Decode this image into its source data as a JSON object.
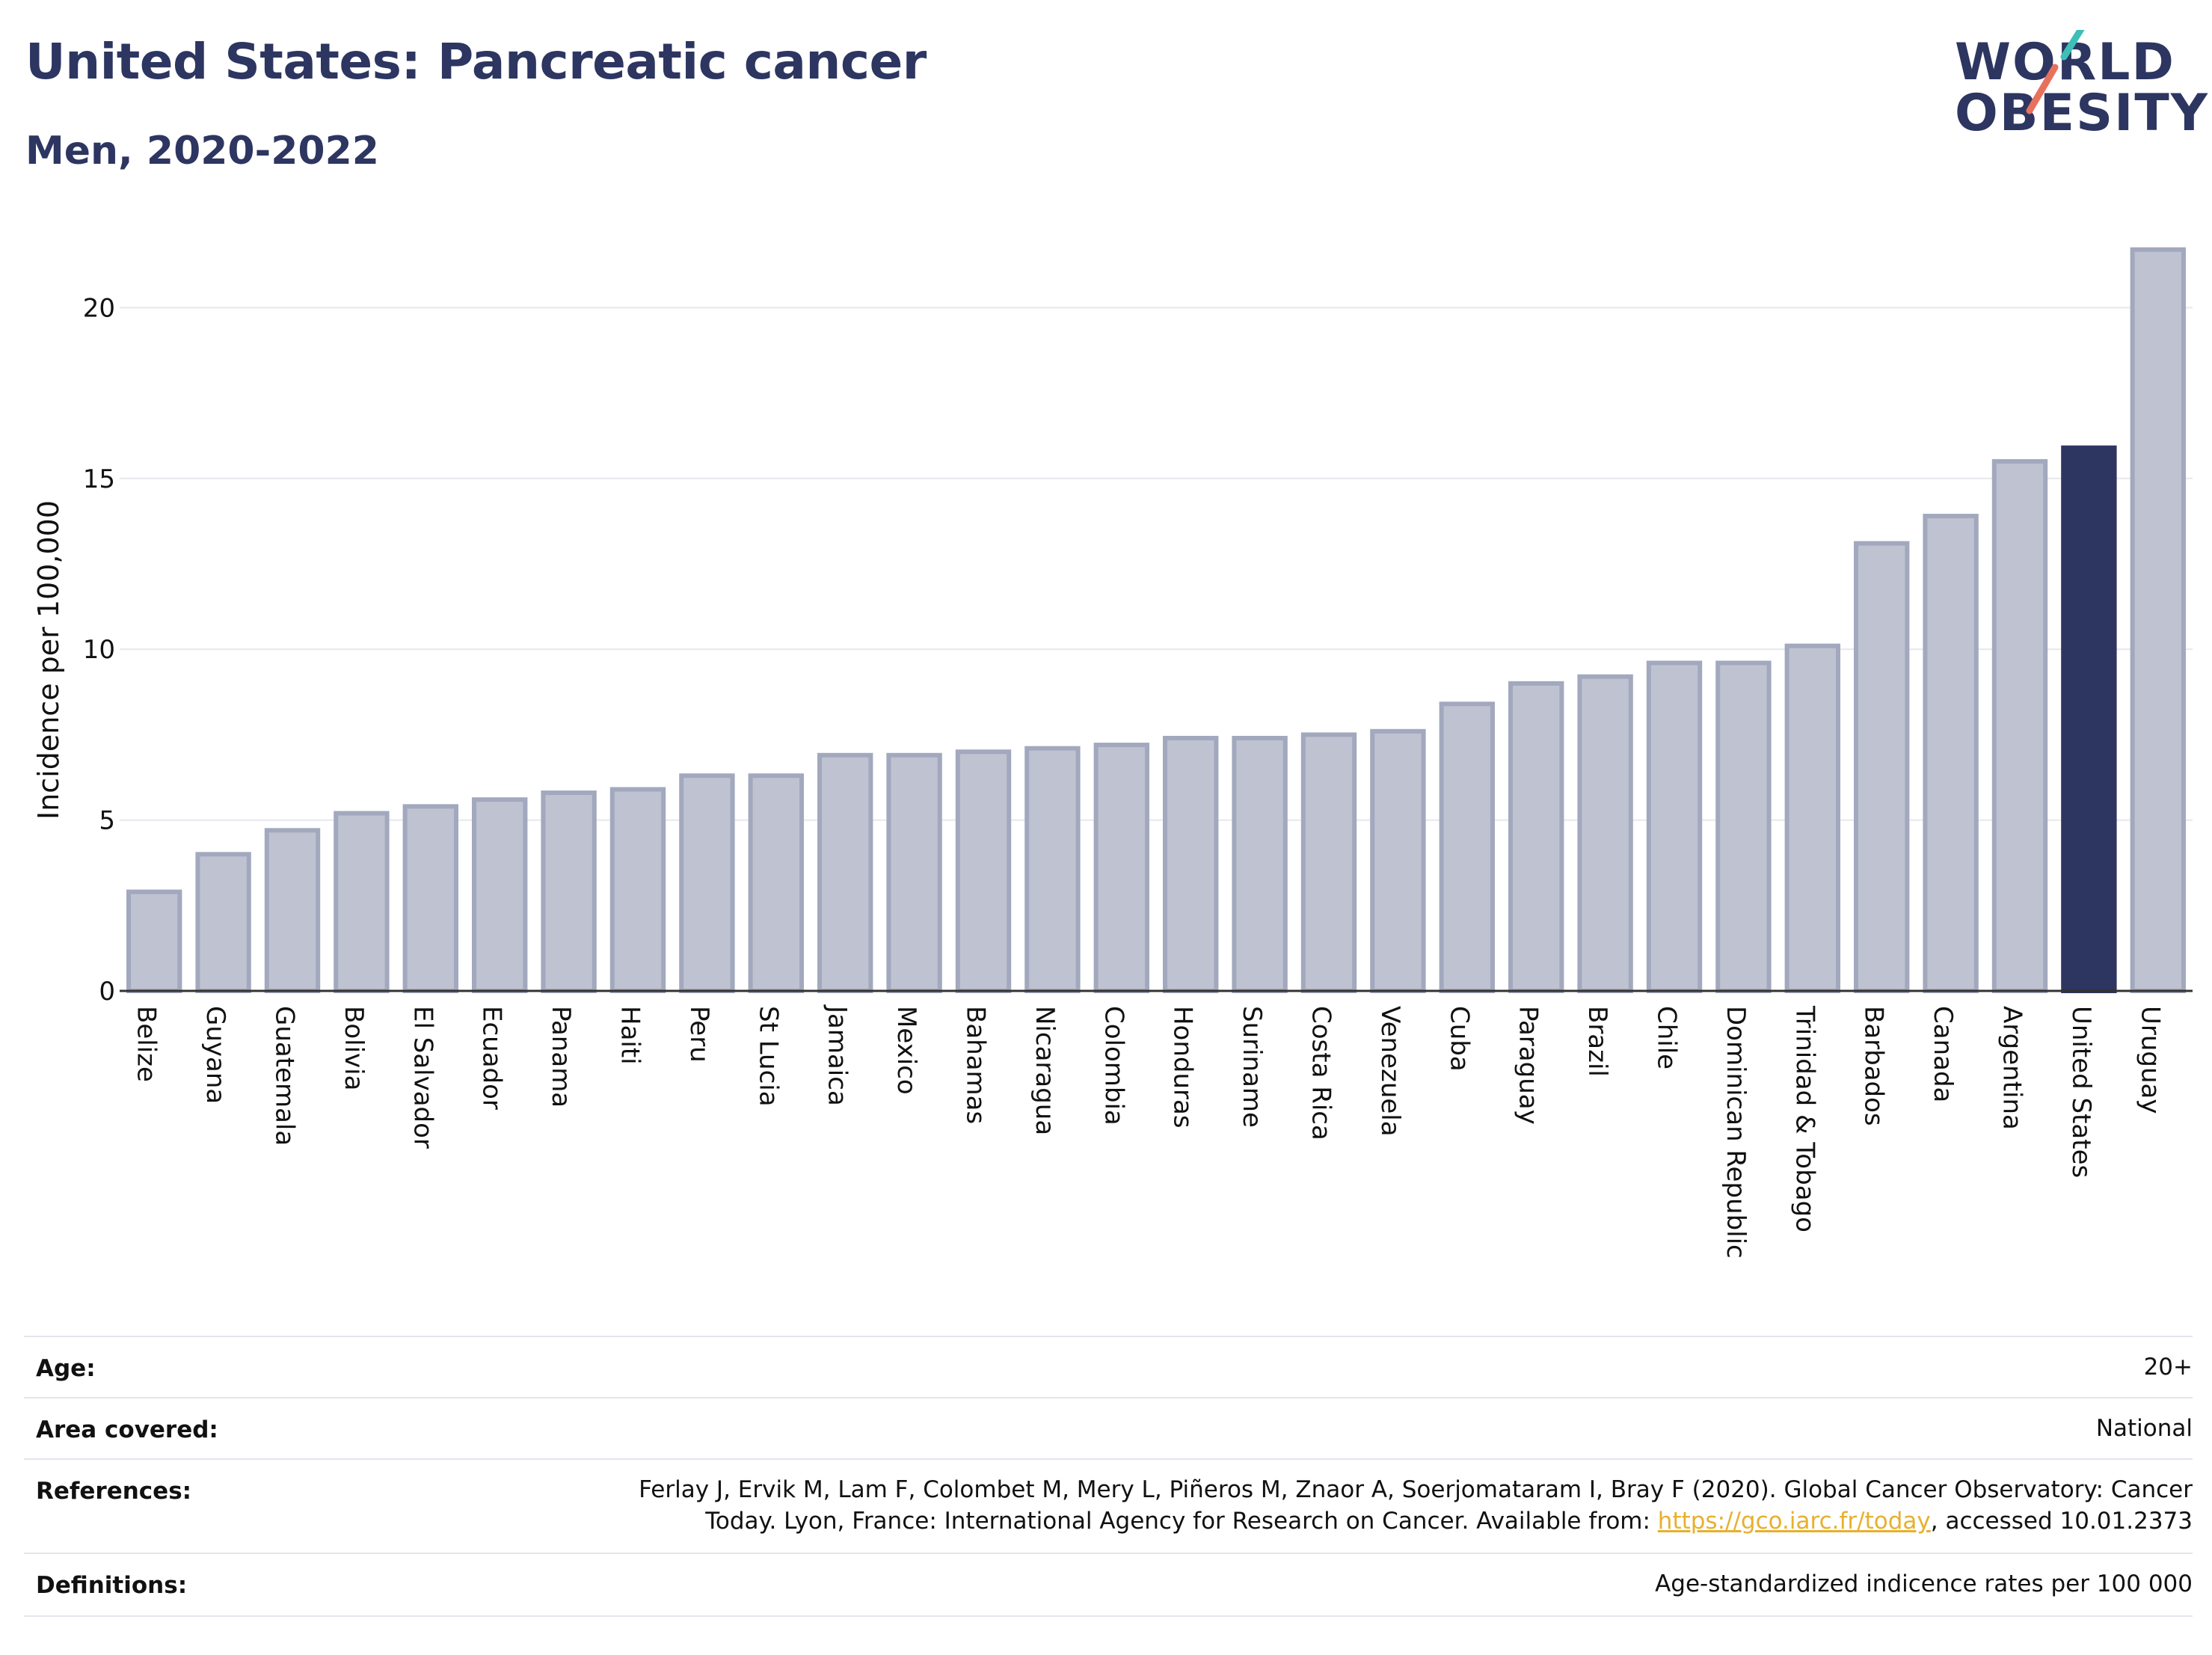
{
  "header": {
    "title": "United States: Pancreatic cancer",
    "subtitle": "Men, 2020-2022",
    "logo_line1": "WORLD",
    "logo_line2": "OBESITY"
  },
  "colors": {
    "title": "#2d3561",
    "bar": "#bfc3d1",
    "bar_stroke": "#a2a8bd",
    "highlight": "#2d3561",
    "logo_slash_top": "#3dbfb8",
    "logo_slash_bottom": "#e8715e",
    "link": "#e7b02e"
  },
  "chart_data": {
    "type": "bar",
    "ylabel": "Incidence per 100,000",
    "ylim": [
      0,
      22
    ],
    "yticks": [
      0,
      5,
      10,
      15,
      20
    ],
    "grid": true,
    "highlight": "United States",
    "categories": [
      "Belize",
      "Guyana",
      "Guatemala",
      "Bolivia",
      "El Salvador",
      "Ecuador",
      "Panama",
      "Haiti",
      "Peru",
      "St Lucia",
      "Jamaica",
      "Mexico",
      "Bahamas",
      "Nicaragua",
      "Colombia",
      "Honduras",
      "Suriname",
      "Costa Rica",
      "Venezuela",
      "Cuba",
      "Paraguay",
      "Brazil",
      "Chile",
      "Dominican Republic",
      "Trinidad & Tobago",
      "Barbados",
      "Canada",
      "Argentina",
      "United States",
      "Uruguay"
    ],
    "values": [
      2.9,
      4.0,
      4.7,
      5.2,
      5.4,
      5.6,
      5.8,
      5.9,
      6.3,
      6.3,
      6.9,
      6.9,
      7.0,
      7.1,
      7.2,
      7.4,
      7.4,
      7.5,
      7.6,
      8.4,
      9.0,
      9.2,
      9.6,
      9.6,
      10.1,
      13.1,
      13.9,
      15.5,
      15.9,
      21.7
    ]
  },
  "meta": {
    "age_label": "Age:",
    "age_value": "20+",
    "area_label": "Area covered:",
    "area_value": "National",
    "references_label": "References:",
    "references_line1": "Ferlay J, Ervik M, Lam F, Colombet M, Mery L, Piñeros M, Znaor A, Soerjomataram I, Bray F (2020). Global Cancer Observatory: Cancer",
    "references_line2_pre": "Today. Lyon, France: International Agency for Research on Cancer. Available from: ",
    "references_link": "https://gco.iarc.fr/today",
    "references_line2_post": ", accessed 10.01.2373",
    "definitions_label": "Definitions:",
    "definitions_value": "Age-standardized indicence rates per 100 000"
  }
}
